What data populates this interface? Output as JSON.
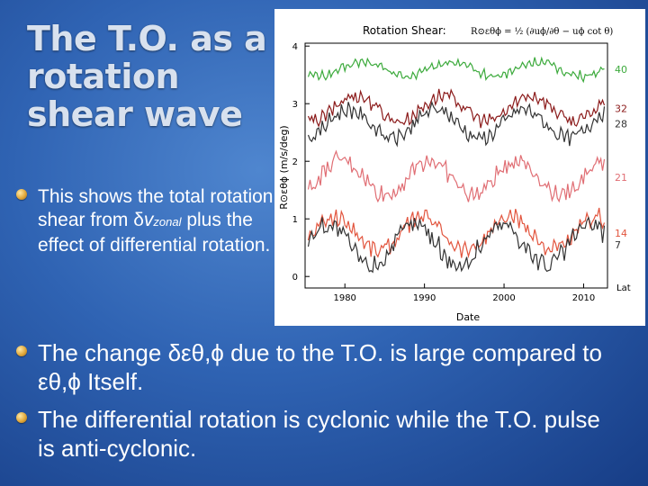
{
  "slide": {
    "title": "The T.O. as a rotation shear wave",
    "bullet1": {
      "part1": "This shows the total rotation shear from ",
      "delta": "δ",
      "v": "v",
      "sub": "zonal",
      "part2": " plus the effect of differential rotation."
    },
    "bullet2": {
      "part1": "The change ",
      "expr1": "δεθ,ϕ",
      "part2": " due to the T.O. is large compared to ",
      "expr2": "εθ,ϕ",
      "part3": " Itself."
    },
    "bullet3": "The differential rotation is cyclonic while the T.O. pulse is anti-cyclonic."
  },
  "chart_data": {
    "type": "line",
    "title": "Rotation Shear:",
    "formula": "R⊙εθϕ = ½ (∂uϕ/∂θ − uϕ cot θ)",
    "xlabel": "Date",
    "ylabel": "R⊙εθϕ (m/s/deg)",
    "xlim": [
      1975,
      2013
    ],
    "ylim": [
      -0.2,
      4.05
    ],
    "xticks": [
      1980,
      1990,
      2000,
      2010
    ],
    "yticks": [
      0,
      1,
      2,
      3,
      4
    ],
    "legend_title": "Lat",
    "series": [
      {
        "name": "40",
        "color": "#3caa3c",
        "level": 3.6,
        "amp": 0.12
      },
      {
        "name": "32",
        "color": "#8b1a1a",
        "level": 2.92,
        "amp": 0.22
      },
      {
        "name": "28",
        "color": "#333333",
        "level": 2.65,
        "amp": 0.25
      },
      {
        "name": "21",
        "color": "#e06e74",
        "level": 1.72,
        "amp": 0.3
      },
      {
        "name": "14",
        "color": "#e2553e",
        "level": 0.75,
        "amp": 0.28
      },
      {
        "name": "7",
        "color": "#333333",
        "level": 0.55,
        "amp": 0.35
      }
    ]
  }
}
